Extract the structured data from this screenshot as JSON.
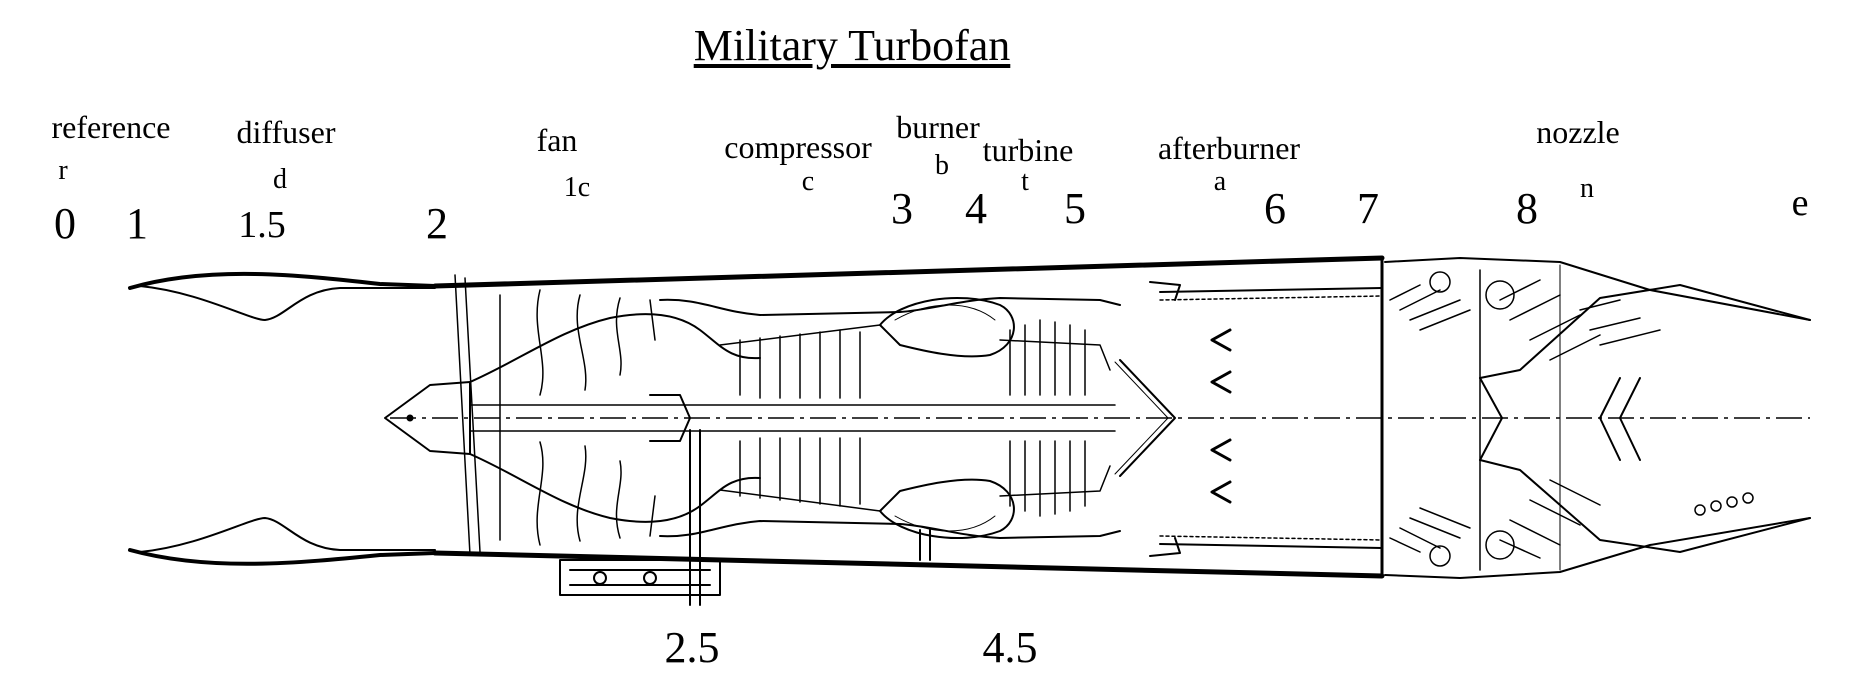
{
  "title": "Military Turbofan",
  "components": [
    {
      "id": "reference",
      "name": "reference",
      "symbol": "r"
    },
    {
      "id": "diffuser",
      "name": "diffuser",
      "symbol": "d"
    },
    {
      "id": "fan",
      "name": "fan",
      "symbol": "1c"
    },
    {
      "id": "compressor",
      "name": "compressor",
      "symbol": "c"
    },
    {
      "id": "burner",
      "name": "burner",
      "symbol": "b"
    },
    {
      "id": "turbine",
      "name": "turbine",
      "symbol": "t"
    },
    {
      "id": "afterburner",
      "name": "afterburner",
      "symbol": "a"
    },
    {
      "id": "nozzle",
      "name": "nozzle",
      "symbol": "n"
    }
  ],
  "stations_top": [
    "0",
    "1",
    "1.5",
    "2",
    "3",
    "4",
    "5",
    "6",
    "7",
    "8",
    "e"
  ],
  "stations_bottom": [
    "2.5",
    "4.5"
  ],
  "colors": {
    "line": "#000000",
    "background": "#ffffff"
  }
}
